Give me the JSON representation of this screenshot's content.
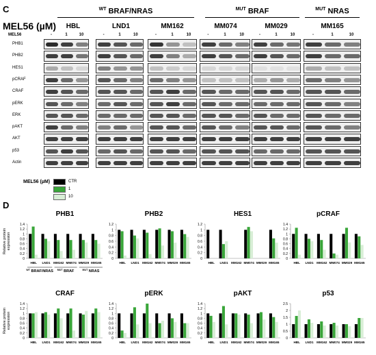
{
  "panel_c": {
    "letter": "C",
    "mel_title": "MEL56 (µM)",
    "groups": [
      {
        "sup": "WT",
        "label": "BRAF/NRAS"
      },
      {
        "sup": "MUT",
        "label": "BRAF"
      },
      {
        "sup": "MUT",
        "label": "NRAS"
      }
    ],
    "cell_lines": [
      "HBL",
      "LND1",
      "MM162",
      "MM074",
      "MM029",
      "MM165"
    ],
    "mel_row_label": "MEL56",
    "doses": [
      "-",
      "1",
      "10"
    ],
    "blots": [
      "PHB1",
      "PHB2",
      "HES1",
      "pCRAF",
      "CRAF",
      "pERK",
      "ERK",
      "pAKT",
      "AKT",
      "p53",
      "Actin"
    ],
    "band_intensity": [
      [
        [
          0.9,
          0.8,
          0.5
        ],
        [
          0.8,
          0.7,
          0.6
        ],
        [
          0.85,
          0.4,
          0.2
        ],
        [
          0.8,
          0.6,
          0.5
        ],
        [
          0.8,
          0.6,
          0.55
        ],
        [
          0.8,
          0.6,
          0.5
        ]
      ],
      [
        [
          0.8,
          0.8,
          0.55
        ],
        [
          0.8,
          0.7,
          0.6
        ],
        [
          0.8,
          0.5,
          0.3
        ],
        [
          0.8,
          0.7,
          0.6
        ],
        [
          0.8,
          0.7,
          0.6
        ],
        [
          0.8,
          0.6,
          0.6
        ]
      ],
      [
        [
          0.3,
          0.2,
          0.1
        ],
        [
          0.5,
          0.4,
          0.4
        ],
        [
          0.2,
          0.15,
          0.1
        ],
        [
          0.1,
          0.1,
          0.1
        ],
        [
          0.05,
          0.05,
          0.05
        ],
        [
          0.3,
          0.2,
          0.2
        ]
      ],
      [
        [
          0.8,
          0.6,
          0.4
        ],
        [
          0.7,
          0.6,
          0.5
        ],
        [
          0.6,
          0.5,
          0.4
        ],
        [
          0.2,
          0.2,
          0.2
        ],
        [
          0.3,
          0.4,
          0.3
        ],
        [
          0.6,
          0.5,
          0.4
        ]
      ],
      [
        [
          0.8,
          0.7,
          0.6
        ],
        [
          0.7,
          0.7,
          0.6
        ],
        [
          0.7,
          0.8,
          0.6
        ],
        [
          0.7,
          0.6,
          0.6
        ],
        [
          0.7,
          0.7,
          0.6
        ],
        [
          0.7,
          0.7,
          0.6
        ]
      ],
      [
        [
          0.7,
          0.6,
          0.5
        ],
        [
          0.6,
          0.7,
          0.6
        ],
        [
          0.7,
          0.8,
          0.6
        ],
        [
          0.7,
          0.6,
          0.6
        ],
        [
          0.6,
          0.6,
          0.6
        ],
        [
          0.7,
          0.6,
          0.5
        ]
      ],
      [
        [
          0.7,
          0.7,
          0.6
        ],
        [
          0.6,
          0.6,
          0.6
        ],
        [
          0.7,
          0.7,
          0.6
        ],
        [
          0.7,
          0.7,
          0.6
        ],
        [
          0.7,
          0.6,
          0.6
        ],
        [
          0.7,
          0.6,
          0.6
        ]
      ],
      [
        [
          0.8,
          0.6,
          0.5
        ],
        [
          0.5,
          0.6,
          0.4
        ],
        [
          0.7,
          0.7,
          0.6
        ],
        [
          0.7,
          0.6,
          0.5
        ],
        [
          0.7,
          0.7,
          0.6
        ],
        [
          0.7,
          0.6,
          0.5
        ]
      ],
      [
        [
          0.8,
          0.8,
          0.8
        ],
        [
          0.8,
          0.8,
          0.8
        ],
        [
          0.8,
          0.8,
          0.8
        ],
        [
          0.8,
          0.8,
          0.8
        ],
        [
          0.8,
          0.8,
          0.8
        ],
        [
          0.8,
          0.8,
          0.8
        ]
      ],
      [
        [
          0.7,
          0.8,
          0.7
        ],
        [
          0.6,
          0.7,
          0.6
        ],
        [
          0.7,
          0.7,
          0.6
        ],
        [
          0.7,
          0.7,
          0.7
        ],
        [
          0.6,
          0.6,
          0.6
        ],
        [
          0.7,
          0.7,
          0.7
        ]
      ],
      [
        [
          0.8,
          0.8,
          0.8
        ],
        [
          0.8,
          0.8,
          0.8
        ],
        [
          0.8,
          0.8,
          0.8
        ],
        [
          0.8,
          0.8,
          0.8
        ],
        [
          0.8,
          0.8,
          0.8
        ],
        [
          0.8,
          0.8,
          0.8
        ]
      ]
    ],
    "legend": {
      "title": "MEL56 (µM)",
      "items": [
        {
          "label": "CTR",
          "color": "#000000"
        },
        {
          "label": "1",
          "color": "#3aa63a"
        },
        {
          "label": "10",
          "color": "#d8eed6"
        }
      ]
    }
  },
  "panel_d": {
    "letter": "D",
    "ylabel_line1": "Relative protein",
    "ylabel_line2": "expression",
    "groups_labels": [
      {
        "sup": "WT",
        "label": "BRAF/NRAS"
      },
      {
        "sup": "MUT",
        "label": "BRAF"
      },
      {
        "sup": "MUT",
        "label": "NRAS"
      }
    ]
  },
  "chart_data": [
    {
      "type": "bar",
      "title": "PHB1",
      "categories": [
        "HBL",
        "LND1",
        "MM162",
        "MM074",
        "MM029",
        "MM165"
      ],
      "ylim": [
        0,
        1.4
      ],
      "yticks": [
        "0",
        "0.2",
        "0.4",
        "0.6",
        "0.8",
        "1",
        "1.2",
        "1.4"
      ],
      "series": [
        {
          "name": "CTR",
          "values": [
            1,
            1,
            1,
            1,
            1,
            1
          ]
        },
        {
          "name": "1",
          "values": [
            1.3,
            0.8,
            0.75,
            0.75,
            0.75,
            0.75
          ]
        },
        {
          "name": "10",
          "values": [
            0.15,
            0.7,
            0.3,
            0.35,
            0.65,
            0.6
          ]
        }
      ]
    },
    {
      "type": "bar",
      "title": "PHB2",
      "categories": [
        "HBL",
        "LND1",
        "MM162",
        "MM074",
        "MM029",
        "MM165"
      ],
      "ylim": [
        0,
        1.2
      ],
      "yticks": [
        "0",
        "0.2",
        "0.4",
        "0.6",
        "0.8",
        "1",
        "1.2"
      ],
      "series": [
        {
          "name": "CTR",
          "values": [
            1,
            1,
            1,
            1,
            1,
            1
          ]
        },
        {
          "name": "1",
          "values": [
            0.95,
            0.8,
            0.9,
            1.05,
            0.95,
            0.85
          ]
        },
        {
          "name": "10",
          "values": [
            0.1,
            0.7,
            0.15,
            0.45,
            0.55,
            0.75
          ]
        }
      ]
    },
    {
      "type": "bar",
      "title": "HES1",
      "categories": [
        "HBL",
        "LND1",
        "MM162",
        "MM074",
        "MM029",
        "MM165"
      ],
      "ylim": [
        0,
        1.2
      ],
      "yticks": [
        "0",
        "0.2",
        "0.4",
        "0.6",
        "0.8",
        "1",
        "1.2"
      ],
      "series": [
        {
          "name": "CTR",
          "values": [
            1,
            1,
            0,
            1,
            0,
            1
          ]
        },
        {
          "name": "1",
          "values": [
            0,
            0.5,
            0,
            1.1,
            0,
            0.7
          ]
        },
        {
          "name": "10",
          "values": [
            0,
            0.6,
            0,
            0.95,
            0,
            0.55
          ]
        }
      ]
    },
    {
      "type": "bar",
      "title": "pCRAF",
      "categories": [
        "HBL",
        "LND1",
        "MM162",
        "MM074",
        "MM029",
        "MM165"
      ],
      "ylim": [
        0,
        1.4
      ],
      "yticks": [
        "0",
        "0.2",
        "0.4",
        "0.6",
        "0.8",
        "1",
        "1.2",
        "1.4"
      ],
      "series": [
        {
          "name": "CTR",
          "values": [
            1,
            1,
            1,
            1,
            1,
            1
          ]
        },
        {
          "name": "1",
          "values": [
            1.25,
            0.8,
            0.75,
            0.2,
            1.25,
            0.9
          ]
        },
        {
          "name": "10",
          "values": [
            0.15,
            0.7,
            0.35,
            0.15,
            0.65,
            0.55
          ]
        }
      ]
    },
    {
      "type": "bar",
      "title": "CRAF",
      "categories": [
        "HBL",
        "LND1",
        "MM162",
        "MM074",
        "MM029",
        "MM165"
      ],
      "ylim": [
        0,
        1.4
      ],
      "yticks": [
        "0",
        "0.2",
        "0.4",
        "0.6",
        "0.8",
        "1",
        "1.2",
        "1.4"
      ],
      "series": [
        {
          "name": "CTR",
          "values": [
            1,
            1,
            1,
            1,
            1,
            1
          ]
        },
        {
          "name": "1",
          "values": [
            1.0,
            1.05,
            1.2,
            1.2,
            0.95,
            1.2
          ]
        },
        {
          "name": "10",
          "values": [
            1.05,
            0.95,
            0.8,
            0.3,
            1.1,
            1.05
          ]
        }
      ]
    },
    {
      "type": "bar",
      "title": "pERK",
      "categories": [
        "HBL",
        "LND1",
        "MM162",
        "MM074",
        "MM029",
        "MM165"
      ],
      "ylim": [
        0,
        1.4
      ],
      "yticks": [
        "0",
        "0.2",
        "0.4",
        "0.6",
        "0.8",
        "1",
        "1.2",
        "1.4"
      ],
      "series": [
        {
          "name": "CTR",
          "values": [
            1,
            1,
            1,
            1,
            1,
            1
          ]
        },
        {
          "name": "1",
          "values": [
            0.3,
            1.25,
            1.4,
            0.6,
            0.8,
            0.6
          ]
        },
        {
          "name": "10",
          "values": [
            0.2,
            0.55,
            0.6,
            0.7,
            0.65,
            0.6
          ]
        }
      ]
    },
    {
      "type": "bar",
      "title": "pAKT",
      "categories": [
        "HBL",
        "LND1",
        "MM162",
        "MM074",
        "MM029",
        "MM165"
      ],
      "ylim": [
        0,
        1.4
      ],
      "yticks": [
        "0",
        "0.2",
        "0.4",
        "0.6",
        "0.8",
        "1",
        "1.2",
        "1.4"
      ],
      "series": [
        {
          "name": "CTR",
          "values": [
            1,
            1,
            1,
            1,
            1,
            1
          ]
        },
        {
          "name": "1",
          "values": [
            0.9,
            1.3,
            1.0,
            0.95,
            1.05,
            0.85
          ]
        },
        {
          "name": "10",
          "values": [
            0.65,
            0.55,
            0.95,
            0.6,
            0.75,
            0.65
          ]
        }
      ]
    },
    {
      "type": "bar",
      "title": "p53",
      "categories": [
        "HBL",
        "LND1",
        "MM162",
        "MM074",
        "MM029",
        "MM165"
      ],
      "ylim": [
        0,
        2.5
      ],
      "yticks": [
        "0",
        "0.5",
        "1",
        "1.5",
        "2",
        "2.5"
      ],
      "series": [
        {
          "name": "CTR",
          "values": [
            1,
            1,
            1,
            1,
            1,
            1
          ]
        },
        {
          "name": "1",
          "values": [
            1.6,
            1.35,
            1.2,
            1.1,
            1.0,
            1.45
          ]
        },
        {
          "name": "10",
          "values": [
            2.0,
            1.1,
            0.9,
            0.9,
            0.85,
            1.45
          ]
        }
      ]
    }
  ]
}
